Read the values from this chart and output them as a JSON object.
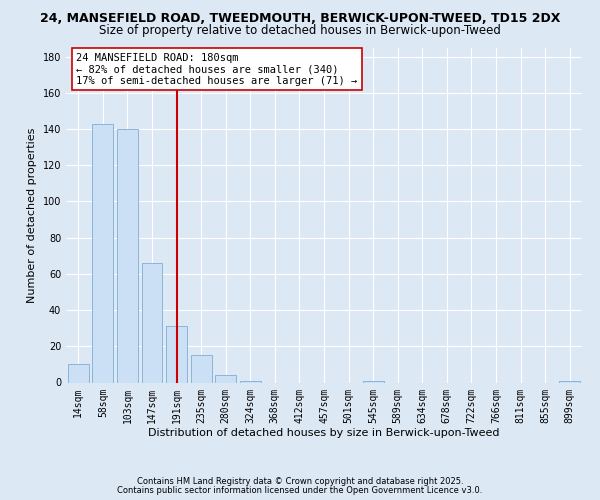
{
  "title": "24, MANSEFIELD ROAD, TWEEDMOUTH, BERWICK-UPON-TWEED, TD15 2DX",
  "subtitle": "Size of property relative to detached houses in Berwick-upon-Tweed",
  "xlabel": "Distribution of detached houses by size in Berwick-upon-Tweed",
  "ylabel": "Number of detached properties",
  "bar_labels": [
    "14sqm",
    "58sqm",
    "103sqm",
    "147sqm",
    "191sqm",
    "235sqm",
    "280sqm",
    "324sqm",
    "368sqm",
    "412sqm",
    "457sqm",
    "501sqm",
    "545sqm",
    "589sqm",
    "634sqm",
    "678sqm",
    "722sqm",
    "766sqm",
    "811sqm",
    "855sqm",
    "899sqm"
  ],
  "bar_values": [
    10,
    143,
    140,
    66,
    31,
    15,
    4,
    1,
    0,
    0,
    0,
    0,
    1,
    0,
    0,
    0,
    0,
    0,
    0,
    0,
    1
  ],
  "bar_color": "#cce0f5",
  "bar_edge_color": "#8ab4d8",
  "vline_x_index": 4,
  "vline_color": "#cc0000",
  "annotation_line1": "24 MANSEFIELD ROAD: 180sqm",
  "annotation_line2": "← 82% of detached houses are smaller (340)",
  "annotation_line3": "17% of semi-detached houses are larger (71) →",
  "annotation_box_color": "white",
  "annotation_box_edge": "#cc0000",
  "ylim": [
    0,
    185
  ],
  "yticks": [
    0,
    20,
    40,
    60,
    80,
    100,
    120,
    140,
    160,
    180
  ],
  "footer1": "Contains HM Land Registry data © Crown copyright and database right 2025.",
  "footer2": "Contains public sector information licensed under the Open Government Licence v3.0.",
  "background_color": "#dde8f5",
  "plot_bg_color": "#dde8f5",
  "title_fontsize": 9,
  "subtitle_fontsize": 8.5,
  "axis_label_fontsize": 8,
  "tick_fontsize": 7,
  "annotation_fontsize": 7.5,
  "footer_fontsize": 6
}
